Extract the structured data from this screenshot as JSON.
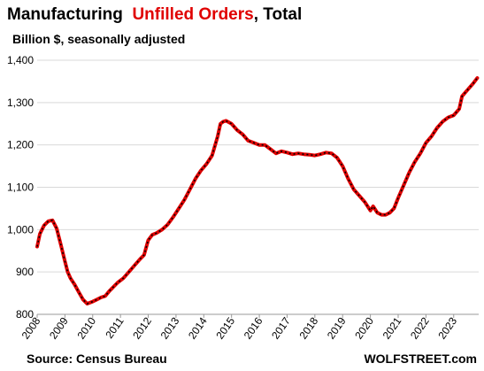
{
  "chart_data": {
    "type": "line",
    "title_parts": [
      "Manufacturing",
      "Unfilled Orders",
      ", Total"
    ],
    "subtitle": "Billion $, seasonally adjusted",
    "source": "Source: Census Bureau",
    "brand": "WOLFSTREET.com",
    "xlabel": "",
    "ylabel": "",
    "xlim": [
      2008,
      2023.9
    ],
    "ylim": [
      800,
      1400
    ],
    "y_ticks": [
      800,
      900,
      1000,
      1100,
      1200,
      1300,
      1400
    ],
    "y_tick_labels": [
      "800",
      "900",
      "1,000",
      "1,100",
      "1,200",
      "1,300",
      "1,400"
    ],
    "x_ticks": [
      2008,
      2009,
      2010,
      2011,
      2012,
      2013,
      2014,
      2015,
      2016,
      2017,
      2018,
      2019,
      2020,
      2021,
      2022,
      2023
    ],
    "x_tick_labels": [
      "2008",
      "2009",
      "2010",
      "2011",
      "2012",
      "2013",
      "2014",
      "2015",
      "2016",
      "2017",
      "2018",
      "2019",
      "2020",
      "2021",
      "2022",
      "2023"
    ],
    "grid": true,
    "line_color": "#e00000",
    "series": [
      {
        "name": "Unfilled Orders",
        "x": [
          2008.0,
          2008.1,
          2008.25,
          2008.4,
          2008.55,
          2008.7,
          2008.85,
          2009.0,
          2009.1,
          2009.2,
          2009.35,
          2009.5,
          2009.65,
          2009.8,
          2010.0,
          2010.15,
          2010.3,
          2010.45,
          2010.6,
          2010.75,
          2010.9,
          2011.1,
          2011.3,
          2011.5,
          2011.7,
          2011.85,
          2012.0,
          2012.15,
          2012.3,
          2012.5,
          2012.7,
          2012.9,
          2013.1,
          2013.3,
          2013.5,
          2013.7,
          2013.9,
          2014.1,
          2014.3,
          2014.5,
          2014.6,
          2014.7,
          2014.8,
          2015.0,
          2015.2,
          2015.4,
          2015.6,
          2015.8,
          2016.0,
          2016.2,
          2016.4,
          2016.6,
          2016.8,
          2017.0,
          2017.2,
          2017.4,
          2017.6,
          2017.8,
          2018.0,
          2018.2,
          2018.4,
          2018.6,
          2018.8,
          2019.0,
          2019.2,
          2019.4,
          2019.6,
          2019.8,
          2020.0,
          2020.1,
          2020.25,
          2020.4,
          2020.55,
          2020.7,
          2020.85,
          2021.0,
          2021.2,
          2021.4,
          2021.6,
          2021.8,
          2022.0,
          2022.2,
          2022.4,
          2022.6,
          2022.8,
          2023.0,
          2023.2,
          2023.3,
          2023.5,
          2023.7,
          2023.85
        ],
        "values": [
          960,
          990,
          1010,
          1020,
          1022,
          1003,
          965,
          925,
          900,
          885,
          870,
          852,
          835,
          825,
          830,
          835,
          840,
          843,
          855,
          865,
          875,
          885,
          900,
          915,
          930,
          940,
          975,
          988,
          992,
          1000,
          1012,
          1030,
          1050,
          1070,
          1095,
          1120,
          1140,
          1155,
          1175,
          1220,
          1250,
          1255,
          1257,
          1250,
          1235,
          1225,
          1210,
          1205,
          1200,
          1200,
          1190,
          1180,
          1185,
          1182,
          1178,
          1180,
          1178,
          1177,
          1175,
          1178,
          1182,
          1180,
          1170,
          1150,
          1120,
          1095,
          1080,
          1065,
          1045,
          1055,
          1040,
          1035,
          1035,
          1040,
          1050,
          1075,
          1105,
          1135,
          1160,
          1180,
          1205,
          1220,
          1240,
          1255,
          1265,
          1270,
          1285,
          1315,
          1330,
          1345,
          1358
        ]
      }
    ]
  }
}
